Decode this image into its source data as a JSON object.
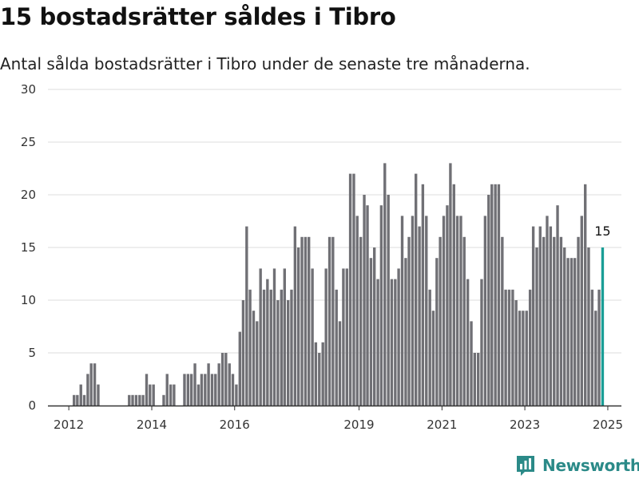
{
  "title": "15 bostadsrätter såldes i Tibro",
  "subtitle": "Antal sålda bostadsrätter i Tibro under de senaste tre månaderna.",
  "brand": {
    "name": "Newsworthy",
    "icon": "newsworthy-logo-icon",
    "color": "#2b8a88"
  },
  "colors": {
    "bar": "#707075",
    "highlight": "#1a9e96",
    "grid": "#dddddd",
    "axis": "#333333"
  },
  "chart_data": {
    "type": "bar",
    "grid": true,
    "ylim": [
      0,
      30
    ],
    "yticks": [
      0,
      5,
      10,
      15,
      20,
      25,
      30
    ],
    "xticks": [
      {
        "label": "2012",
        "date": "2012-01-01"
      },
      {
        "label": "2014",
        "date": "2014-01-01"
      },
      {
        "label": "2016",
        "date": "2016-01-01"
      },
      {
        "label": "2019",
        "date": "2019-01-01"
      },
      {
        "label": "2021",
        "date": "2021-01-01"
      },
      {
        "label": "2023",
        "date": "2023-01-01"
      },
      {
        "label": "2025",
        "date": "2025-01-01"
      }
    ],
    "x_start": "2011-07-01",
    "x_end": "2025-05-01",
    "highlight_label": "15",
    "series": [
      {
        "start": "2012-01-01",
        "frequency": "monthly",
        "values": [
          0,
          1,
          1,
          2,
          1,
          3,
          4,
          4,
          2,
          0,
          0,
          0,
          0,
          0,
          0,
          0,
          0,
          1,
          1,
          1,
          1,
          1,
          3,
          2,
          2,
          0,
          0,
          1,
          3,
          2,
          2,
          0,
          0,
          3,
          3,
          3,
          4,
          2,
          3,
          3,
          4,
          3,
          3,
          4,
          5,
          5,
          4,
          3,
          2,
          7,
          10,
          17,
          11,
          9,
          8,
          13,
          11,
          12,
          11,
          13,
          10,
          11,
          13,
          10,
          11,
          17,
          15,
          16,
          16,
          16,
          13,
          6,
          5,
          6,
          13,
          16,
          16,
          11,
          8,
          13,
          13,
          22,
          22,
          18,
          16,
          20,
          19,
          14,
          15,
          12,
          19,
          23,
          20,
          12,
          12,
          13,
          18,
          14,
          16,
          18,
          22,
          17,
          21,
          18,
          11,
          9,
          14,
          16,
          18,
          19,
          23,
          21,
          18,
          18,
          16,
          12,
          8,
          5,
          5,
          12,
          18,
          20,
          21,
          21,
          21,
          16,
          11,
          11,
          11,
          10,
          9,
          9,
          9,
          11,
          17,
          15,
          17,
          16,
          18,
          17,
          16,
          19,
          16,
          15,
          14,
          14,
          14,
          16,
          18,
          21,
          15,
          11,
          9,
          11,
          15
        ]
      }
    ]
  }
}
